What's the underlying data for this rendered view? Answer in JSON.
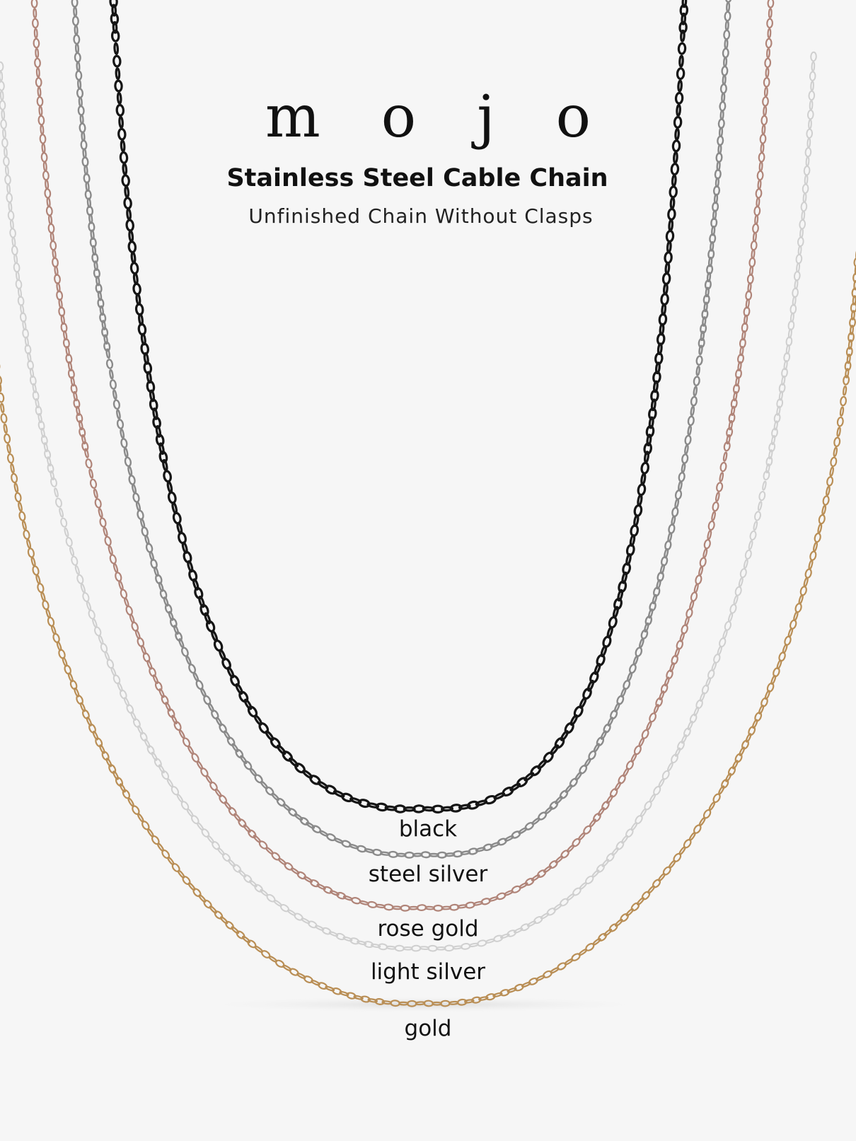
{
  "brand": "m o j o",
  "title": "Stainless Steel Cable Chain",
  "subtitle": "Unfinished Chain Without Clasps",
  "chains": [
    {
      "name": "black",
      "color": "#151515"
    },
    {
      "name": "steel silver",
      "color": "#8a8a8a"
    },
    {
      "name": "rose gold",
      "color": "#b08478"
    },
    {
      "name": "light silver",
      "color": "#cfcfcf"
    },
    {
      "name": "gold",
      "color": "#b98e55"
    }
  ]
}
